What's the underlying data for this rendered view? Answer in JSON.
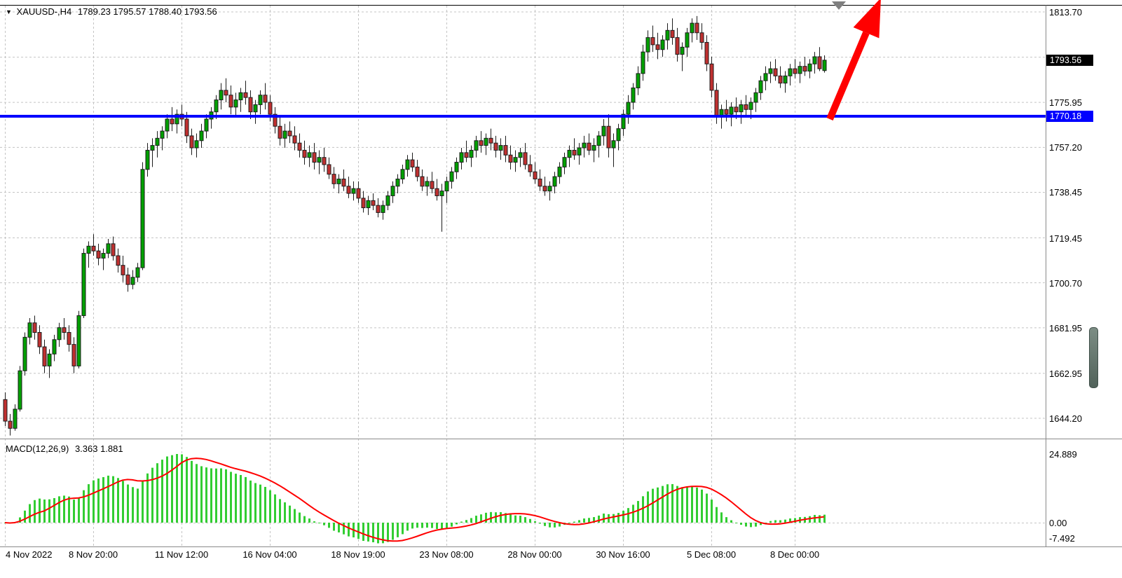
{
  "header": {
    "symbol_timeframe": "XAUUSD-,H4",
    "ohlc_text": "1789.23 1795.57 1788.40 1793.56"
  },
  "indicator_label": {
    "name": "MACD(12,26,9)",
    "values": "3.363 1.881"
  },
  "price_axis": {
    "current_price_badge": "1793.56",
    "hline_badge": "1770.18"
  },
  "colors": {
    "up": "#00A000",
    "down": "#C03030",
    "outline": "#1d1d1d",
    "grid": "#c4c4c4",
    "separator": "#8a8a8a",
    "border": "#000000",
    "macd_hist": "#32CD32",
    "macd_signal": "#FF0000",
    "hline": "#0000FF",
    "arrow": "#FF0000",
    "badge_current_bg": "#000000",
    "badge_hline_bg": "#0000FF",
    "marker_triangle": "#7f7f7f"
  },
  "chart_data": {
    "type": "candlestick",
    "symbol": "XAUUSD-",
    "timeframe": "H4",
    "last_ohlc": {
      "open": 1789.23,
      "high": 1795.57,
      "low": 1788.4,
      "close": 1793.56
    },
    "price_range": [
      1644.2,
      1813.7
    ],
    "horizontal_line": {
      "price": 1770.18,
      "color": "#0000FF"
    },
    "price_ticks": [
      {
        "label": "1813.70",
        "price": 1813.7
      },
      {
        "label": "1775.95",
        "price": 1775.95
      },
      {
        "label": "1757.20",
        "price": 1757.2
      },
      {
        "label": "1738.45",
        "price": 1738.45
      },
      {
        "label": "1719.45",
        "price": 1719.45
      },
      {
        "label": "1700.70",
        "price": 1700.7
      },
      {
        "label": "1681.95",
        "price": 1681.95
      },
      {
        "label": "1662.95",
        "price": 1662.95
      },
      {
        "label": "1644.20",
        "price": 1644.2
      }
    ],
    "time_ticks": [
      {
        "label": "4 Nov 2022",
        "index": 0
      },
      {
        "label": "8 Nov 20:00",
        "index": 18
      },
      {
        "label": "11 Nov 12:00",
        "index": 36
      },
      {
        "label": "16 Nov 04:00",
        "index": 54
      },
      {
        "label": "18 Nov 19:00",
        "index": 72
      },
      {
        "label": "23 Nov 08:00",
        "index": 90
      },
      {
        "label": "28 Nov 00:00",
        "index": 108
      },
      {
        "label": "30 Nov 16:00",
        "index": 126
      },
      {
        "label": "5 Dec 08:00",
        "index": 144
      },
      {
        "label": "8 Dec 00:00",
        "index": 161
      }
    ],
    "macd": {
      "params": [
        12,
        26,
        9
      ],
      "current_main": 3.363,
      "current_signal": 1.881,
      "axis_ticks": [
        {
          "label": "24.889",
          "value": 24.889
        },
        {
          "label": "0.00",
          "value": 0
        },
        {
          "label": "-7.492",
          "value": -7.492
        }
      ]
    },
    "candles": [
      [
        1652,
        1655,
        1641,
        1643
      ],
      [
        1643,
        1646,
        1637,
        1640
      ],
      [
        1640,
        1650,
        1639,
        1648
      ],
      [
        1648,
        1666,
        1647,
        1664
      ],
      [
        1664,
        1680,
        1662,
        1678
      ],
      [
        1678,
        1686,
        1675,
        1684
      ],
      [
        1684,
        1687,
        1677,
        1680
      ],
      [
        1680,
        1683,
        1671,
        1674
      ],
      [
        1674,
        1677,
        1663,
        1666
      ],
      [
        1666,
        1673,
        1661,
        1671
      ],
      [
        1671,
        1679,
        1668,
        1677
      ],
      [
        1677,
        1684,
        1674,
        1682
      ],
      [
        1682,
        1686,
        1677,
        1680
      ],
      [
        1680,
        1683,
        1672,
        1675
      ],
      [
        1675,
        1678,
        1663,
        1666
      ],
      [
        1666,
        1689,
        1665,
        1687
      ],
      [
        1687,
        1715,
        1686,
        1713
      ],
      [
        1713,
        1718,
        1707,
        1716
      ],
      [
        1716,
        1721,
        1712,
        1714
      ],
      [
        1714,
        1717,
        1708,
        1711
      ],
      [
        1711,
        1715,
        1706,
        1713
      ],
      [
        1713,
        1719,
        1711,
        1717
      ],
      [
        1717,
        1720,
        1710,
        1712
      ],
      [
        1712,
        1715,
        1705,
        1708
      ],
      [
        1708,
        1712,
        1701,
        1704
      ],
      [
        1704,
        1707,
        1697,
        1700
      ],
      [
        1700,
        1706,
        1698,
        1703
      ],
      [
        1703,
        1709,
        1701,
        1707
      ],
      [
        1707,
        1751,
        1706,
        1748
      ],
      [
        1748,
        1759,
        1745,
        1756
      ],
      [
        1756,
        1761,
        1749,
        1758
      ],
      [
        1758,
        1764,
        1753,
        1761
      ],
      [
        1761,
        1766,
        1756,
        1764
      ],
      [
        1764,
        1771,
        1761,
        1769
      ],
      [
        1769,
        1774,
        1764,
        1767
      ],
      [
        1767,
        1773,
        1763,
        1771
      ],
      [
        1771,
        1775,
        1766,
        1769
      ],
      [
        1769,
        1772,
        1759,
        1762
      ],
      [
        1762,
        1765,
        1754,
        1757
      ],
      [
        1757,
        1763,
        1753,
        1760
      ],
      [
        1760,
        1767,
        1757,
        1764
      ],
      [
        1764,
        1771,
        1761,
        1769
      ],
      [
        1769,
        1774,
        1765,
        1772
      ],
      [
        1772,
        1779,
        1769,
        1777
      ],
      [
        1777,
        1784,
        1773,
        1781
      ],
      [
        1781,
        1786,
        1776,
        1779
      ],
      [
        1779,
        1783,
        1771,
        1774
      ],
      [
        1774,
        1780,
        1770,
        1777
      ],
      [
        1777,
        1782,
        1772,
        1780
      ],
      [
        1780,
        1785,
        1775,
        1778
      ],
      [
        1778,
        1781,
        1769,
        1772
      ],
      [
        1772,
        1777,
        1767,
        1775
      ],
      [
        1775,
        1781,
        1771,
        1779
      ],
      [
        1779,
        1784,
        1773,
        1776
      ],
      [
        1776,
        1779,
        1768,
        1771
      ],
      [
        1771,
        1774,
        1763,
        1766
      ],
      [
        1766,
        1770,
        1758,
        1761
      ],
      [
        1761,
        1767,
        1757,
        1764
      ],
      [
        1764,
        1768,
        1759,
        1762
      ],
      [
        1762,
        1766,
        1756,
        1759
      ],
      [
        1759,
        1763,
        1753,
        1756
      ],
      [
        1756,
        1760,
        1750,
        1753
      ],
      [
        1753,
        1758,
        1749,
        1755
      ],
      [
        1755,
        1759,
        1748,
        1751
      ],
      [
        1751,
        1756,
        1746,
        1753
      ],
      [
        1753,
        1757,
        1747,
        1750
      ],
      [
        1750,
        1753,
        1744,
        1746
      ],
      [
        1746,
        1749,
        1740,
        1742
      ],
      [
        1742,
        1746,
        1738,
        1744
      ],
      [
        1744,
        1748,
        1739,
        1741
      ],
      [
        1741,
        1745,
        1736,
        1738
      ],
      [
        1738,
        1743,
        1735,
        1740
      ],
      [
        1740,
        1743,
        1734,
        1736
      ],
      [
        1736,
        1739,
        1730,
        1732
      ],
      [
        1732,
        1737,
        1729,
        1735
      ],
      [
        1735,
        1738,
        1731,
        1733
      ],
      [
        1733,
        1736,
        1728,
        1730
      ],
      [
        1730,
        1735,
        1727,
        1733
      ],
      [
        1733,
        1739,
        1731,
        1737
      ],
      [
        1737,
        1743,
        1734,
        1741
      ],
      [
        1741,
        1746,
        1738,
        1744
      ],
      [
        1744,
        1750,
        1742,
        1748
      ],
      [
        1748,
        1754,
        1745,
        1752
      ],
      [
        1752,
        1755,
        1747,
        1749
      ],
      [
        1749,
        1752,
        1743,
        1745
      ],
      [
        1745,
        1748,
        1739,
        1741
      ],
      [
        1741,
        1745,
        1737,
        1743
      ],
      [
        1743,
        1747,
        1738,
        1740
      ],
      [
        1740,
        1744,
        1735,
        1737
      ],
      [
        1737,
        1742,
        1722,
        1739
      ],
      [
        1739,
        1745,
        1734,
        1743
      ],
      [
        1743,
        1749,
        1740,
        1747
      ],
      [
        1747,
        1753,
        1744,
        1751
      ],
      [
        1751,
        1757,
        1748,
        1755
      ],
      [
        1755,
        1760,
        1751,
        1753
      ],
      [
        1753,
        1758,
        1749,
        1756
      ],
      [
        1756,
        1762,
        1753,
        1760
      ],
      [
        1760,
        1764,
        1755,
        1758
      ],
      [
        1758,
        1763,
        1754,
        1761
      ],
      [
        1761,
        1765,
        1756,
        1759
      ],
      [
        1759,
        1762,
        1753,
        1756
      ],
      [
        1756,
        1761,
        1752,
        1758
      ],
      [
        1758,
        1762,
        1751,
        1754
      ],
      [
        1754,
        1758,
        1748,
        1751
      ],
      [
        1751,
        1756,
        1747,
        1753
      ],
      [
        1753,
        1757,
        1749,
        1755
      ],
      [
        1755,
        1759,
        1748,
        1750
      ],
      [
        1750,
        1754,
        1745,
        1747
      ],
      [
        1747,
        1751,
        1742,
        1744
      ],
      [
        1744,
        1748,
        1739,
        1741
      ],
      [
        1741,
        1745,
        1737,
        1739
      ],
      [
        1739,
        1743,
        1735,
        1741
      ],
      [
        1741,
        1747,
        1738,
        1745
      ],
      [
        1745,
        1751,
        1742,
        1749
      ],
      [
        1749,
        1755,
        1746,
        1753
      ],
      [
        1753,
        1758,
        1749,
        1756
      ],
      [
        1756,
        1761,
        1752,
        1754
      ],
      [
        1754,
        1759,
        1750,
        1757
      ],
      [
        1757,
        1762,
        1753,
        1759
      ],
      [
        1759,
        1763,
        1754,
        1756
      ],
      [
        1756,
        1761,
        1751,
        1758
      ],
      [
        1758,
        1764,
        1753,
        1762
      ],
      [
        1762,
        1769,
        1758,
        1766
      ],
      [
        1766,
        1771,
        1753,
        1757
      ],
      [
        1757,
        1763,
        1749,
        1760
      ],
      [
        1760,
        1767,
        1756,
        1765
      ],
      [
        1765,
        1773,
        1762,
        1771
      ],
      [
        1771,
        1779,
        1767,
        1776
      ],
      [
        1776,
        1784,
        1773,
        1782
      ],
      [
        1782,
        1791,
        1779,
        1788
      ],
      [
        1788,
        1800,
        1785,
        1797
      ],
      [
        1797,
        1806,
        1793,
        1803
      ],
      [
        1803,
        1808,
        1797,
        1800
      ],
      [
        1800,
        1805,
        1794,
        1798
      ],
      [
        1798,
        1804,
        1795,
        1802
      ],
      [
        1802,
        1809,
        1798,
        1806
      ],
      [
        1806,
        1811,
        1800,
        1803
      ],
      [
        1803,
        1807,
        1793,
        1796
      ],
      [
        1796,
        1801,
        1789,
        1799
      ],
      [
        1799,
        1807,
        1795,
        1805
      ],
      [
        1805,
        1811,
        1801,
        1809
      ],
      [
        1809,
        1812,
        1802,
        1805
      ],
      [
        1805,
        1809,
        1798,
        1801
      ],
      [
        1801,
        1804,
        1789,
        1792
      ],
      [
        1792,
        1795,
        1778,
        1781
      ],
      [
        1781,
        1784,
        1767,
        1770
      ],
      [
        1770,
        1775,
        1765,
        1773
      ],
      [
        1773,
        1777,
        1768,
        1771
      ],
      [
        1771,
        1776,
        1766,
        1774
      ],
      [
        1774,
        1778,
        1769,
        1772
      ],
      [
        1772,
        1777,
        1767,
        1775
      ],
      [
        1775,
        1779,
        1770,
        1773
      ],
      [
        1773,
        1778,
        1769,
        1776
      ],
      [
        1776,
        1782,
        1772,
        1780
      ],
      [
        1780,
        1787,
        1777,
        1785
      ],
      [
        1785,
        1791,
        1781,
        1788
      ],
      [
        1788,
        1793,
        1784,
        1790
      ],
      [
        1790,
        1794,
        1785,
        1787
      ],
      [
        1787,
        1791,
        1782,
        1784
      ],
      [
        1784,
        1789,
        1780,
        1787
      ],
      [
        1787,
        1792,
        1783,
        1790
      ],
      [
        1790,
        1794,
        1786,
        1788
      ],
      [
        1788,
        1793,
        1784,
        1791
      ],
      [
        1791,
        1795,
        1787,
        1789
      ],
      [
        1789,
        1794,
        1786,
        1792
      ],
      [
        1792,
        1797,
        1788,
        1795
      ],
      [
        1795,
        1799,
        1789,
        1790
      ],
      [
        1789.23,
        1795.57,
        1788.4,
        1793.56
      ]
    ]
  }
}
